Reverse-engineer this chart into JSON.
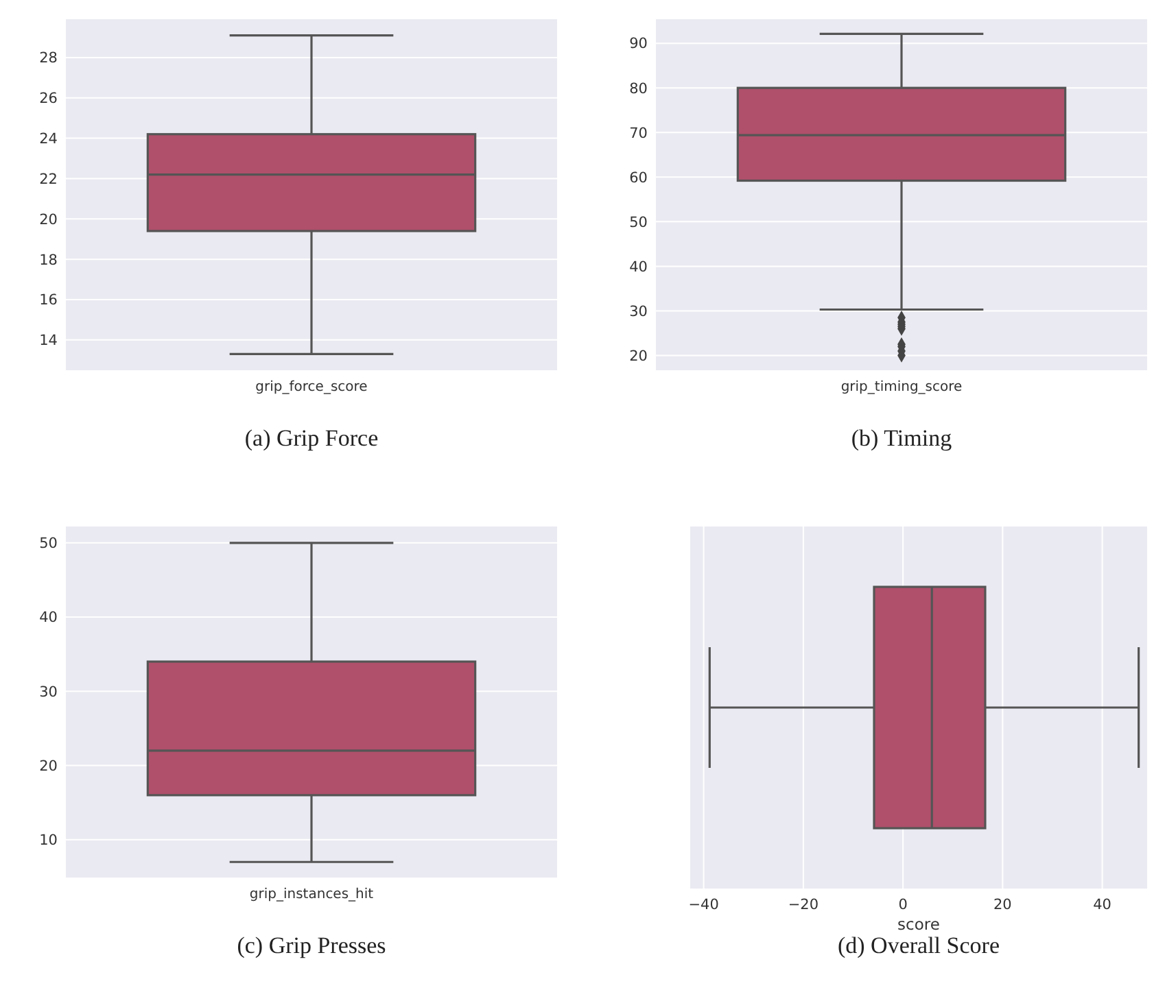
{
  "chart_data": [
    {
      "type": "box",
      "title": "(a) Grip Force",
      "categories": [
        "grip_force_score"
      ],
      "color": "#b0506b",
      "boxes": [
        {
          "low": 13.3,
          "q1": 19.4,
          "median": 22.2,
          "q3": 24.2,
          "high": 29.1
        }
      ],
      "ylim": [
        12.5,
        29.9
      ],
      "yticks": [
        14,
        16,
        18,
        20,
        22,
        24,
        26,
        28
      ],
      "grid": "y"
    },
    {
      "type": "box",
      "title": "(b) Timing",
      "categories": [
        "grip_timing_score"
      ],
      "color": "#b0506b",
      "marker": "diamond",
      "boxes": [
        {
          "low": 30.3,
          "q1": 59.2,
          "median": 69.4,
          "q3": 80,
          "high": 92.1,
          "outliers": [
            28.5,
            27.5,
            27,
            26.5,
            26,
            22.5,
            22,
            21,
            20
          ]
        }
      ],
      "ylim": [
        16.7,
        95.4
      ],
      "yticks": [
        20,
        30,
        40,
        50,
        60,
        70,
        80,
        90
      ],
      "grid": "y"
    },
    {
      "type": "box",
      "title": "(c) Grip Presses",
      "categories": [
        "grip_instances_hit"
      ],
      "color": "#b0506b",
      "boxes": [
        {
          "low": 7,
          "q1": 16,
          "median": 22,
          "q3": 34,
          "high": 50
        }
      ],
      "ylim": [
        4.9,
        52.2
      ],
      "yticks": [
        10,
        20,
        30,
        40,
        50
      ],
      "grid": "y"
    },
    {
      "type": "box",
      "title": "(d) Overall Score",
      "orientation": "horizontal",
      "categories": [
        null
      ],
      "xlabel": "score",
      "color": "#b0506b",
      "boxes": [
        {
          "low": -38.8,
          "q1": -5.8,
          "median": 5.8,
          "q3": 16.5,
          "high": 47.3
        }
      ],
      "xlim": [
        -42.7,
        49
      ],
      "xticks": [
        {
          "value": -40,
          "label": "−40"
        },
        {
          "value": -20,
          "label": "−20"
        },
        0,
        20,
        40
      ],
      "grid": "x",
      "tick_labels": "x"
    }
  ]
}
